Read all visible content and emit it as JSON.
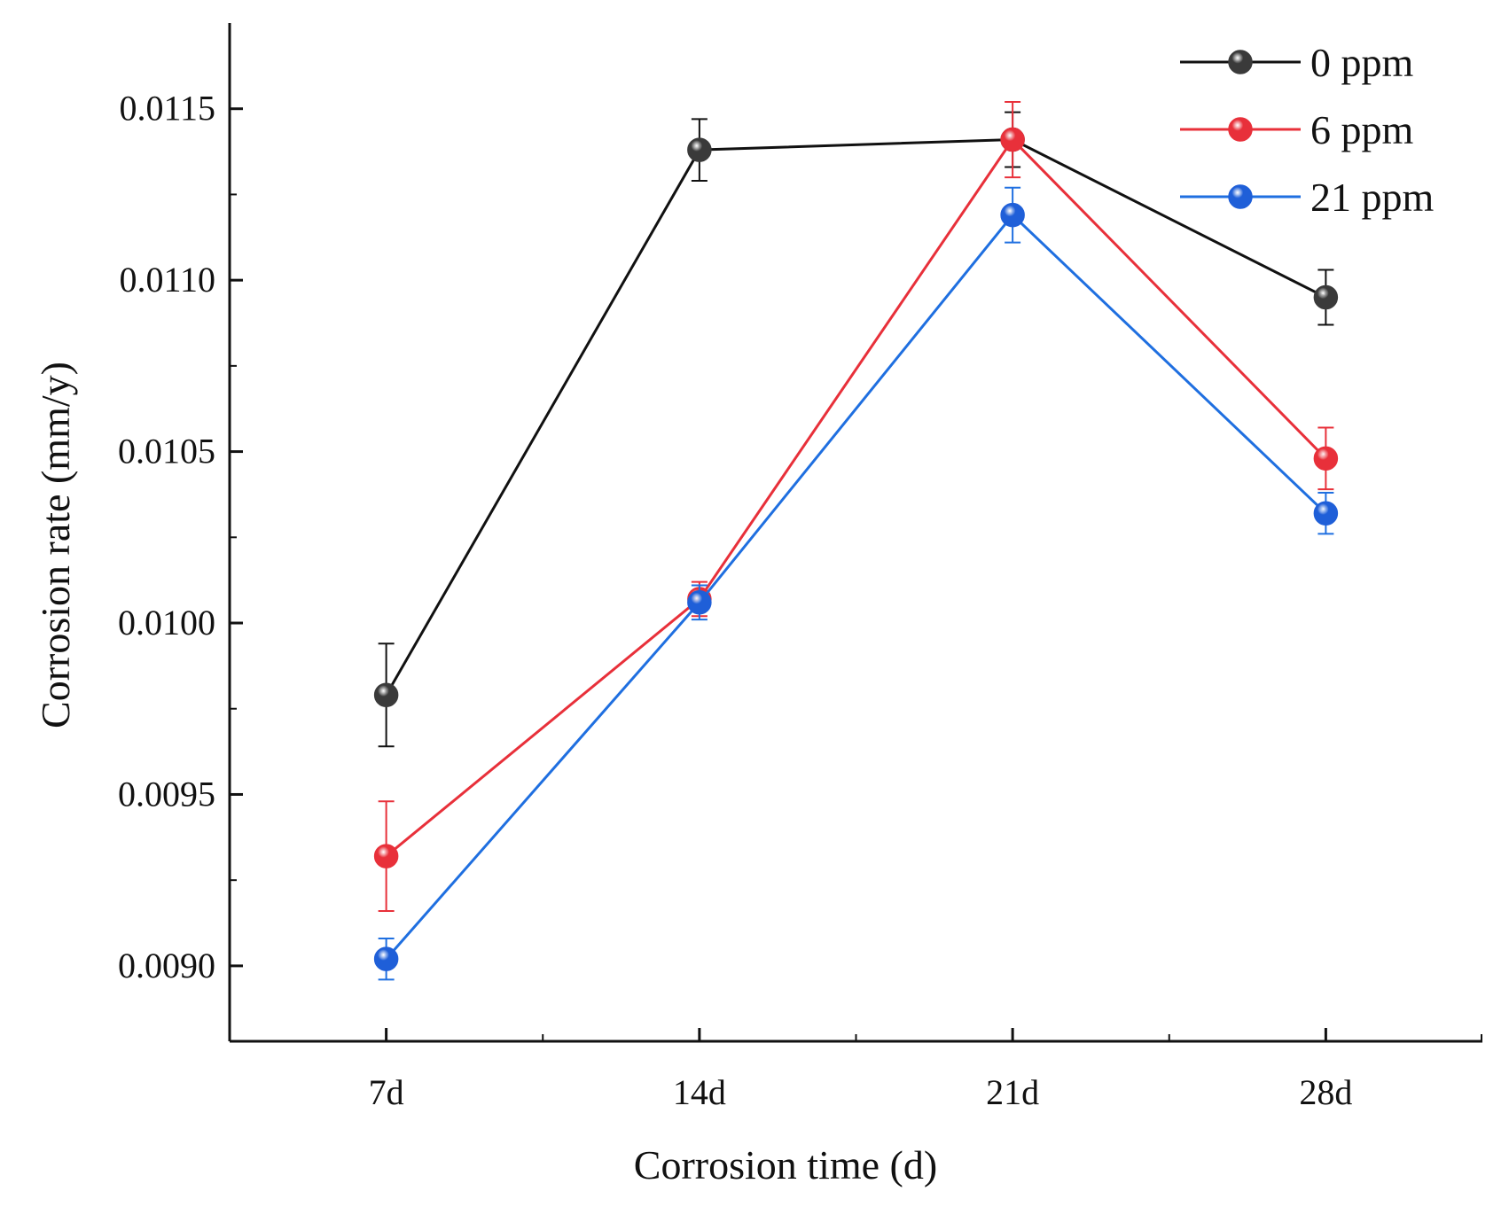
{
  "chart_data": {
    "type": "line",
    "xlabel": "Corrosion time (d)",
    "ylabel": "Corrosion rate (mm/y)",
    "categories": [
      "7d",
      "14d",
      "21d",
      "28d"
    ],
    "xlim": [
      0.5,
      4.5
    ],
    "ylim": [
      0.00878,
      0.01175
    ],
    "yticks": [
      0.009,
      0.0095,
      0.01,
      0.0105,
      0.011,
      0.0115
    ],
    "ytick_labels": [
      "0.0090",
      "0.0095",
      "0.0100",
      "0.0105",
      "0.0110",
      "0.0115"
    ],
    "grid": false,
    "legend_position": "top-right",
    "series": [
      {
        "name": "0 ppm",
        "color": "#3a3a3a",
        "line_color": "#111111",
        "values": [
          0.00979,
          0.01138,
          0.01141,
          0.01095
        ],
        "errors": [
          0.00015,
          9e-05,
          8e-05,
          8e-05
        ]
      },
      {
        "name": "6 ppm",
        "color": "#e8303a",
        "line_color": "#e8303a",
        "values": [
          0.00932,
          0.01007,
          0.01141,
          0.01048
        ],
        "errors": [
          0.00016,
          5e-05,
          0.00011,
          9e-05
        ]
      },
      {
        "name": "21 ppm",
        "color": "#1f5fd8",
        "line_color": "#1f6fe0",
        "values": [
          0.00902,
          0.01006,
          0.01119,
          0.01032
        ],
        "errors": [
          6e-05,
          5e-05,
          8e-05,
          6e-05
        ]
      }
    ]
  }
}
